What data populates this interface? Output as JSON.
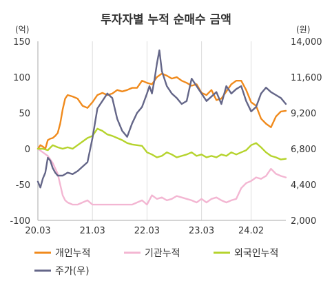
{
  "chart_data": {
    "type": "line",
    "title": "투자자별 누적 순매수 금액",
    "y_left_unit": "(억)",
    "y_right_unit": "(원)",
    "y_left_ticks": [
      "150",
      "100",
      "50",
      "0",
      "-50",
      "-100"
    ],
    "y_right_ticks": [
      "14,000",
      "11,600",
      "9,200",
      "6,800",
      "4,400",
      "2,000"
    ],
    "x_ticks": [
      "20.03",
      "21.03",
      "22.03",
      "23.03",
      "24.02"
    ],
    "ylim_left": [
      -100,
      150
    ],
    "ylim_right": [
      2000,
      14000
    ],
    "xlim": [
      0,
      100
    ],
    "x_tick_positions": [
      0,
      22,
      44,
      66,
      86
    ],
    "grid": "vertical",
    "legend_position": "bottom",
    "series": [
      {
        "name": "개인누적",
        "axis": "left",
        "color": "#f08a1c",
        "x": [
          0,
          1,
          2,
          3,
          4,
          5,
          6,
          7,
          8,
          9,
          10,
          11,
          12,
          14,
          16,
          18,
          20,
          22,
          24,
          26,
          28,
          30,
          32,
          34,
          36,
          38,
          40,
          42,
          44,
          46,
          48,
          50,
          52,
          54,
          56,
          58,
          60,
          62,
          64,
          66,
          68,
          70,
          72,
          74,
          76,
          78,
          80,
          82,
          84,
          86,
          88,
          90,
          92,
          94,
          96,
          98,
          100
        ],
        "values": [
          0,
          5,
          3,
          0,
          12,
          14,
          15,
          18,
          22,
          35,
          55,
          70,
          75,
          73,
          70,
          60,
          57,
          65,
          75,
          78,
          75,
          77,
          82,
          80,
          82,
          85,
          85,
          95,
          92,
          90,
          100,
          105,
          102,
          98,
          100,
          95,
          92,
          88,
          90,
          78,
          75,
          82,
          68,
          70,
          80,
          90,
          95,
          95,
          82,
          65,
          60,
          42,
          35,
          30,
          45,
          52,
          53
        ]
      },
      {
        "name": "기관누적",
        "axis": "left",
        "color": "#f3b6d2",
        "x": [
          0,
          2,
          4,
          6,
          8,
          9,
          10,
          11,
          12,
          14,
          16,
          18,
          20,
          22,
          24,
          26,
          28,
          30,
          32,
          34,
          36,
          38,
          40,
          42,
          44,
          46,
          48,
          50,
          52,
          54,
          56,
          58,
          60,
          62,
          64,
          66,
          68,
          70,
          72,
          74,
          76,
          78,
          80,
          82,
          84,
          86,
          88,
          90,
          92,
          94,
          96,
          98,
          100
        ],
        "values": [
          0,
          -5,
          -10,
          -20,
          -35,
          -50,
          -65,
          -72,
          -75,
          -78,
          -78,
          -75,
          -72,
          -78,
          -78,
          -78,
          -78,
          -78,
          -78,
          -78,
          -78,
          -78,
          -75,
          -72,
          -78,
          -65,
          -70,
          -68,
          -72,
          -70,
          -66,
          -68,
          -70,
          -72,
          -75,
          -70,
          -75,
          -70,
          -68,
          -72,
          -75,
          -72,
          -70,
          -55,
          -48,
          -45,
          -40,
          -42,
          -38,
          -28,
          -35,
          -38,
          -40
        ]
      },
      {
        "name": "외국인누적",
        "axis": "left",
        "color": "#b5d32c",
        "x": [
          0,
          2,
          4,
          6,
          8,
          10,
          12,
          14,
          16,
          18,
          20,
          22,
          24,
          26,
          28,
          30,
          32,
          34,
          36,
          38,
          40,
          42,
          44,
          46,
          48,
          50,
          52,
          54,
          56,
          58,
          60,
          62,
          64,
          66,
          68,
          70,
          72,
          74,
          76,
          78,
          80,
          82,
          84,
          86,
          88,
          90,
          92,
          94,
          96,
          98,
          100
        ],
        "values": [
          0,
          0,
          -2,
          5,
          2,
          0,
          2,
          0,
          5,
          10,
          15,
          18,
          28,
          25,
          20,
          18,
          15,
          12,
          8,
          6,
          5,
          4,
          -5,
          -8,
          -12,
          -10,
          -5,
          -8,
          -12,
          -10,
          -8,
          -5,
          -10,
          -8,
          -12,
          -10,
          -12,
          -8,
          -10,
          -5,
          -8,
          -5,
          -2,
          5,
          8,
          2,
          -5,
          -10,
          -12,
          -15,
          -14
        ]
      },
      {
        "name": "주가(우)",
        "axis": "right",
        "color": "#646688",
        "x": [
          0,
          1,
          2,
          3,
          4,
          5,
          6,
          7,
          8,
          10,
          12,
          14,
          16,
          18,
          20,
          22,
          24,
          26,
          28,
          30,
          32,
          34,
          36,
          38,
          40,
          42,
          44,
          45,
          46,
          47,
          48,
          49,
          50,
          52,
          54,
          56,
          58,
          60,
          62,
          64,
          66,
          68,
          70,
          72,
          74,
          76,
          78,
          80,
          82,
          84,
          86,
          88,
          90,
          92,
          94,
          96,
          98,
          100
        ],
        "values": [
          4600,
          4200,
          4800,
          5200,
          6200,
          6000,
          5500,
          5200,
          5000,
          5000,
          5200,
          5100,
          5300,
          5600,
          5900,
          7500,
          9500,
          10000,
          10500,
          10200,
          8800,
          8000,
          7600,
          8500,
          9200,
          9600,
          10500,
          11000,
          10500,
          11400,
          12500,
          13400,
          12000,
          11000,
          10500,
          10200,
          9800,
          10000,
          11500,
          11000,
          10500,
          10000,
          10300,
          10600,
          9800,
          11000,
          10500,
          10800,
          11000,
          10000,
          9300,
          9600,
          10500,
          10900,
          10600,
          10400,
          10200,
          9800
        ]
      }
    ]
  }
}
